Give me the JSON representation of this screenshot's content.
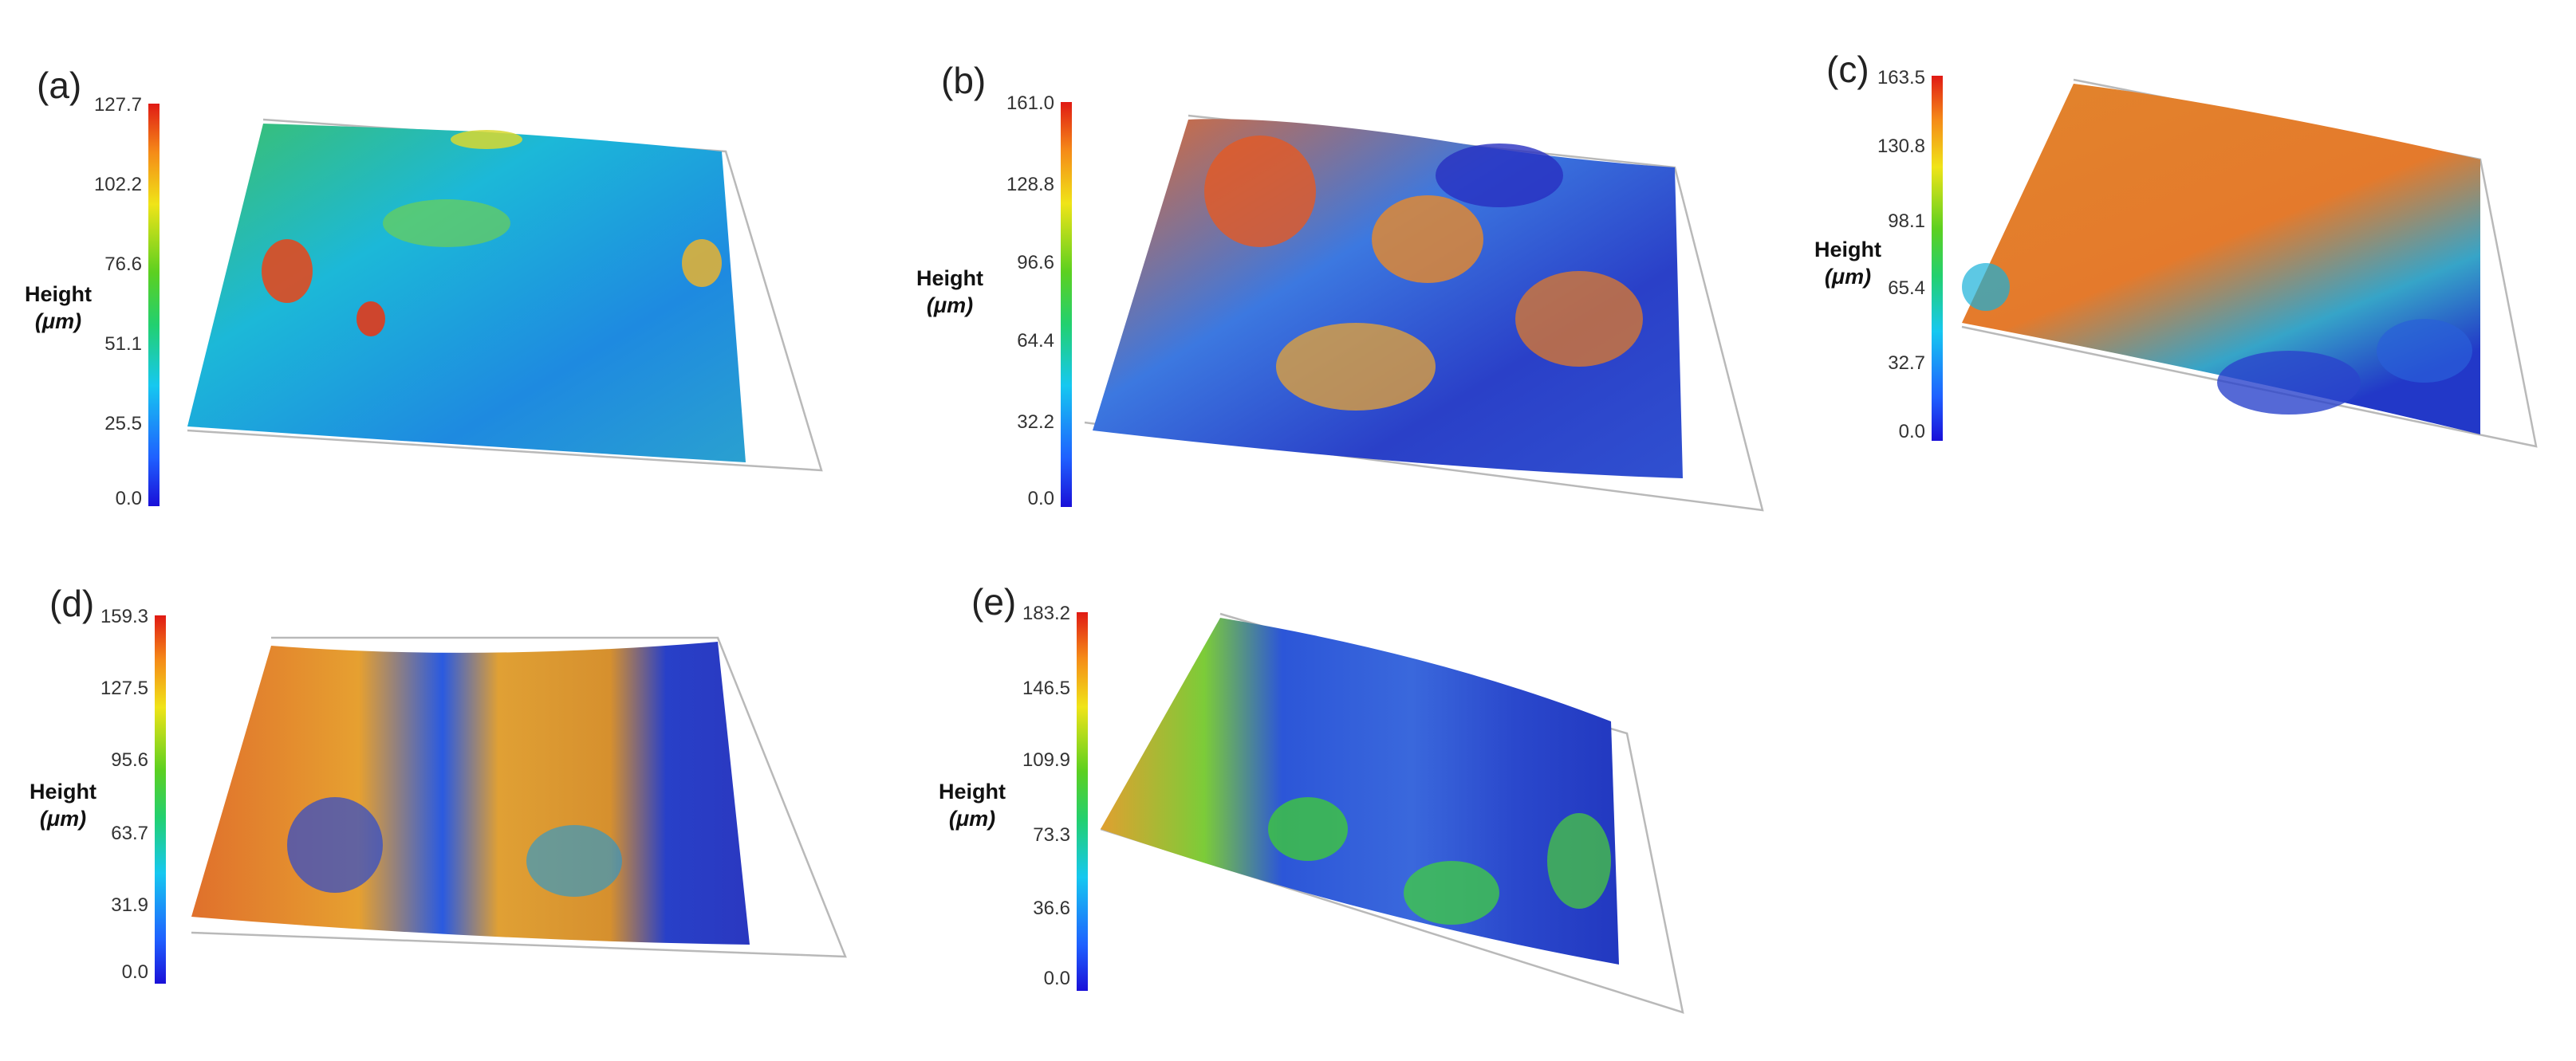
{
  "panels": [
    {
      "label": "(a)",
      "ticks": [
        "127.7",
        "102.2",
        "76.6",
        "51.1",
        "25.5",
        "0.0"
      ],
      "axis_title": "Height",
      "unit": "(μm)"
    },
    {
      "label": "(b)",
      "ticks": [
        "161.0",
        "128.8",
        "96.6",
        "64.4",
        "32.2",
        "0.0"
      ],
      "axis_title": "Height",
      "unit": "(μm)"
    },
    {
      "label": "(c)",
      "ticks": [
        "163.5",
        "130.8",
        "98.1",
        "65.4",
        "32.7",
        "0.0"
      ],
      "axis_title": "Height",
      "unit": "(μm)"
    },
    {
      "label": "(d)",
      "ticks": [
        "159.3",
        "127.5",
        "95.6",
        "63.7",
        "31.9",
        "0.0"
      ],
      "axis_title": "Height",
      "unit": "(μm)"
    },
    {
      "label": "(e)",
      "ticks": [
        "183.2",
        "146.5",
        "109.9",
        "73.3",
        "36.6",
        "0.0"
      ],
      "axis_title": "Height",
      "unit": "(μm)"
    }
  ],
  "colors": {
    "blue": "#1a22d0",
    "cyan": "#18c6e8",
    "green": "#3cc83c",
    "yellow": "#e8dc28",
    "orange": "#ef8a2a",
    "red": "#d8281c"
  }
}
